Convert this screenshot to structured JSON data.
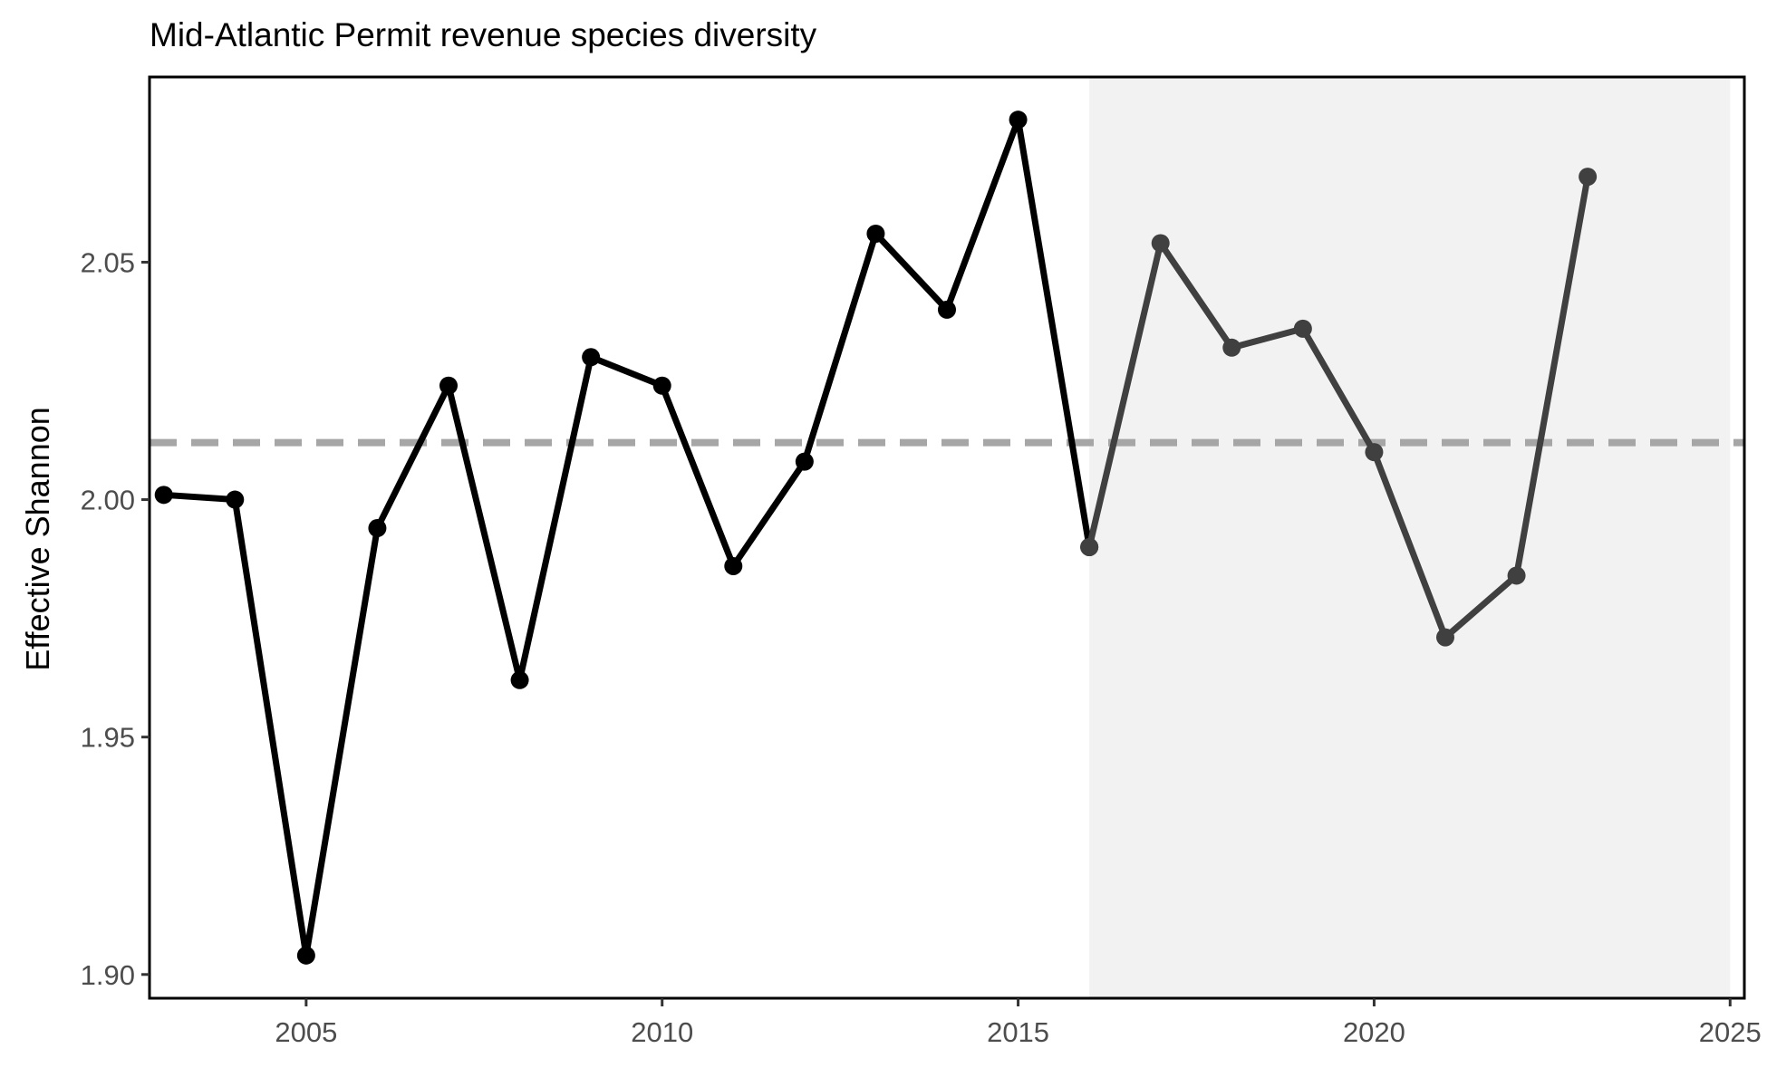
{
  "chart_data": {
    "type": "line",
    "title": "Mid-Atlantic Permit revenue species diversity",
    "xlabel": "",
    "ylabel": "Effective Shannon",
    "xlim": [
      2002.8,
      2025.2
    ],
    "ylim": [
      1.895,
      2.089
    ],
    "x_ticks": [
      2005,
      2010,
      2015,
      2020,
      2025
    ],
    "y_ticks": [
      "1.90",
      "1.95",
      "2.00",
      "2.05"
    ],
    "grid": false,
    "reference_line": {
      "y": 2.012,
      "style": "dashed",
      "color": "#a6a6a6"
    },
    "shaded_region": {
      "x": [
        2016,
        2025
      ],
      "color": "#f2f2f2"
    },
    "series": [
      {
        "color": "#000000",
        "points": [
          {
            "x": 2003,
            "y": 2.001
          },
          {
            "x": 2004,
            "y": 2.0
          },
          {
            "x": 2005,
            "y": 1.904
          },
          {
            "x": 2006,
            "y": 1.994
          },
          {
            "x": 2007,
            "y": 2.024
          },
          {
            "x": 2008,
            "y": 1.962
          },
          {
            "x": 2009,
            "y": 2.03
          },
          {
            "x": 2010,
            "y": 2.024
          },
          {
            "x": 2011,
            "y": 1.986
          },
          {
            "x": 2012,
            "y": 2.008
          },
          {
            "x": 2013,
            "y": 2.056
          },
          {
            "x": 2014,
            "y": 2.04
          },
          {
            "x": 2015,
            "y": 2.08
          },
          {
            "x": 2016,
            "y": 1.99
          }
        ]
      },
      {
        "color": "#404040",
        "points": [
          {
            "x": 2016,
            "y": 1.99
          },
          {
            "x": 2017,
            "y": 2.054
          },
          {
            "x": 2018,
            "y": 2.032
          },
          {
            "x": 2019,
            "y": 2.036
          },
          {
            "x": 2020,
            "y": 2.01
          },
          {
            "x": 2021,
            "y": 1.971
          },
          {
            "x": 2022,
            "y": 1.984
          },
          {
            "x": 2023,
            "y": 2.068
          }
        ]
      }
    ]
  }
}
